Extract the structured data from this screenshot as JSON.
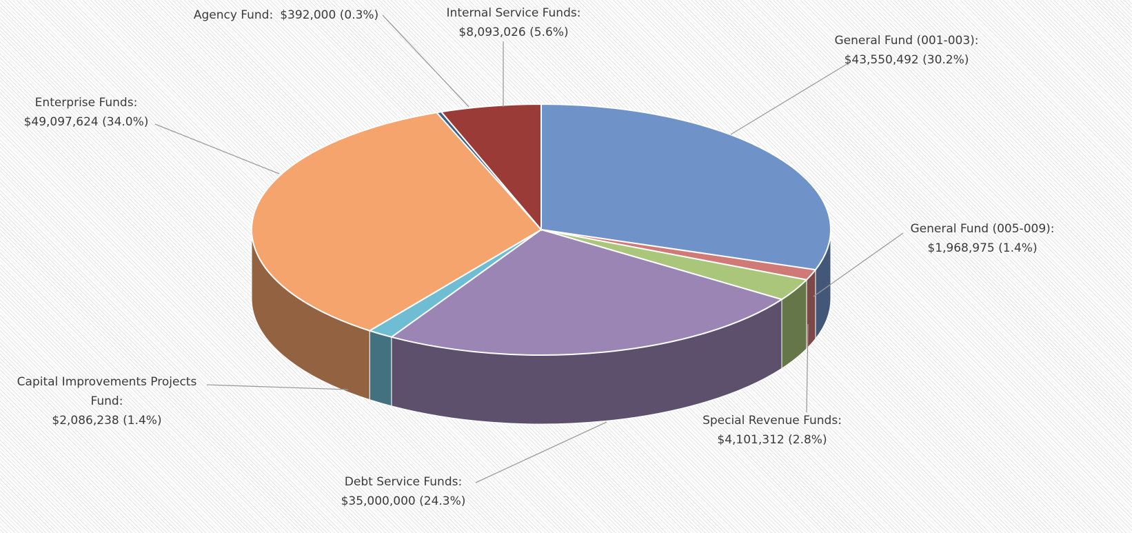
{
  "chart_data": {
    "type": "pie",
    "categories": [
      "General Fund (001-003):",
      "General Fund (005-009):",
      "Special Revenue Funds:",
      "Debt Service Funds:",
      "Capital Improvements Projects Fund:",
      "Enterprise Funds:",
      "Agency Fund:",
      "Internal Service Funds:"
    ],
    "values": [
      43550492,
      1968975,
      4101312,
      35000000,
      2086238,
      49097624,
      392000,
      8093026
    ],
    "value_labels": [
      "$43,550,492 (30.2%)",
      "$1,968,975 (1.4%)",
      "$4,101,312 (2.8%)",
      "$35,000,000 (24.3%)",
      "$2,086,238 (1.4%)",
      "$49,097,624 (34.0%)",
      "$392,000 (0.3%)",
      "$8,093,026 (5.6%)"
    ],
    "colors": [
      "#6f93c8",
      "#d07a78",
      "#a9c67a",
      "#9a85b5",
      "#6fbdd3",
      "#f4a46c",
      "#3e5f8a",
      "#9a3b38"
    ]
  }
}
